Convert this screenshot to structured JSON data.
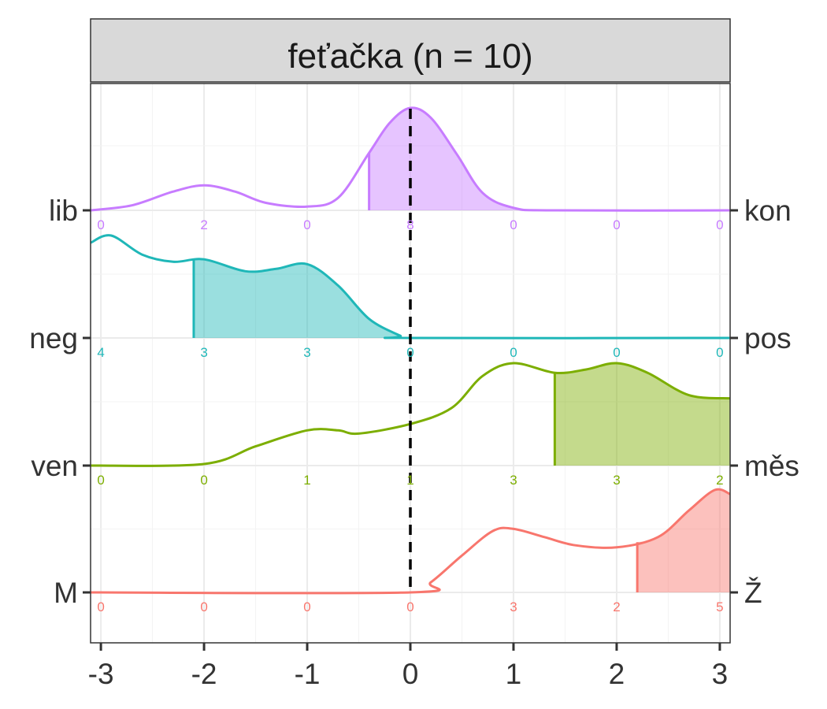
{
  "chart_data": {
    "type": "ridgeline",
    "facet_title": "feťačka (n = 10)",
    "x_ticks": [
      -3,
      -2,
      -1,
      0,
      1,
      2,
      3
    ],
    "xlim": [
      -3.1,
      3.1
    ],
    "reference_line_x": 0,
    "grid": true,
    "rows": [
      {
        "left_label": "lib",
        "right_label": "kon",
        "color": "#C77CFF",
        "mean": -0.4,
        "peak": 0.82,
        "counts": [
          0,
          2,
          0,
          8,
          0,
          0,
          0
        ],
        "density": [
          {
            "x": -3.1,
            "y": 0.0
          },
          {
            "x": -2.7,
            "y": 0.04
          },
          {
            "x": -2.3,
            "y": 0.15
          },
          {
            "x": -2.0,
            "y": 0.2
          },
          {
            "x": -1.7,
            "y": 0.15
          },
          {
            "x": -1.4,
            "y": 0.06
          },
          {
            "x": -1.0,
            "y": 0.03
          },
          {
            "x": -0.7,
            "y": 0.1
          },
          {
            "x": -0.4,
            "y": 0.46
          },
          {
            "x": -0.2,
            "y": 0.7
          },
          {
            "x": 0.0,
            "y": 0.82
          },
          {
            "x": 0.2,
            "y": 0.74
          },
          {
            "x": 0.45,
            "y": 0.45
          },
          {
            "x": 0.7,
            "y": 0.14
          },
          {
            "x": 1.0,
            "y": 0.02
          },
          {
            "x": 1.4,
            "y": 0.0
          },
          {
            "x": 3.1,
            "y": 0.0
          }
        ]
      },
      {
        "left_label": "neg",
        "right_label": "pos",
        "color": "#1FB7B8",
        "mean": -2.1,
        "peak": 0.43,
        "counts": [
          4,
          3,
          3,
          0,
          0,
          0,
          0
        ],
        "density": [
          {
            "x": -3.1,
            "y": 0.4
          },
          {
            "x": -2.9,
            "y": 0.43
          },
          {
            "x": -2.6,
            "y": 0.35
          },
          {
            "x": -2.3,
            "y": 0.32
          },
          {
            "x": -2.0,
            "y": 0.33
          },
          {
            "x": -1.6,
            "y": 0.28
          },
          {
            "x": -1.3,
            "y": 0.29
          },
          {
            "x": -1.0,
            "y": 0.31
          },
          {
            "x": -0.7,
            "y": 0.22
          },
          {
            "x": -0.4,
            "y": 0.08
          },
          {
            "x": -0.1,
            "y": 0.01
          },
          {
            "x": 0.0,
            "y": 0.0
          },
          {
            "x": 3.1,
            "y": 0.0
          }
        ]
      },
      {
        "left_label": "ven",
        "right_label": "měs",
        "color": "#7CAE00",
        "mean": 1.4,
        "peak": 0.32,
        "counts": [
          0,
          0,
          1,
          1,
          3,
          3,
          2
        ],
        "density": [
          {
            "x": -3.1,
            "y": 0.0
          },
          {
            "x": -2.0,
            "y": 0.005
          },
          {
            "x": -1.5,
            "y": 0.06
          },
          {
            "x": -1.0,
            "y": 0.11
          },
          {
            "x": -0.7,
            "y": 0.11
          },
          {
            "x": -0.5,
            "y": 0.1
          },
          {
            "x": 0.0,
            "y": 0.13
          },
          {
            "x": 0.4,
            "y": 0.18
          },
          {
            "x": 0.7,
            "y": 0.28
          },
          {
            "x": 1.0,
            "y": 0.32
          },
          {
            "x": 1.4,
            "y": 0.29
          },
          {
            "x": 1.7,
            "y": 0.3
          },
          {
            "x": 2.0,
            "y": 0.32
          },
          {
            "x": 2.3,
            "y": 0.29
          },
          {
            "x": 2.7,
            "y": 0.22
          },
          {
            "x": 3.1,
            "y": 0.21
          }
        ]
      },
      {
        "left_label": "M",
        "right_label": "Ž",
        "color": "#F8766D",
        "mean": 2.2,
        "peak": 0.5,
        "counts": [
          0,
          0,
          0,
          0,
          3,
          2,
          5
        ],
        "density": [
          {
            "x": -3.1,
            "y": 0.0
          },
          {
            "x": 0.0,
            "y": 0.0
          },
          {
            "x": 0.2,
            "y": 0.05
          },
          {
            "x": 0.5,
            "y": 0.18
          },
          {
            "x": 0.8,
            "y": 0.3
          },
          {
            "x": 1.0,
            "y": 0.31
          },
          {
            "x": 1.3,
            "y": 0.27
          },
          {
            "x": 1.6,
            "y": 0.23
          },
          {
            "x": 2.0,
            "y": 0.22
          },
          {
            "x": 2.4,
            "y": 0.27
          },
          {
            "x": 2.7,
            "y": 0.4
          },
          {
            "x": 2.95,
            "y": 0.5
          },
          {
            "x": 3.1,
            "y": 0.48
          }
        ]
      }
    ]
  }
}
